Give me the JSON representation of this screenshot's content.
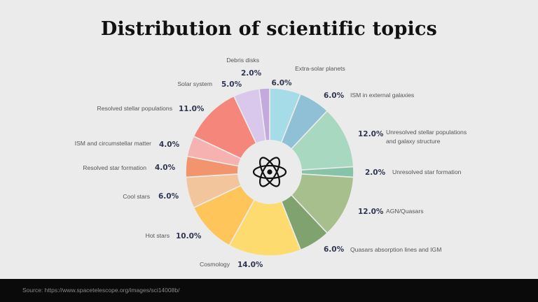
{
  "title": "Distribution of scientific topics",
  "source": "Source: https://www.spacetelescope.org/images/sci14008b/",
  "center_icon": "atom-icon",
  "chart_data": {
    "type": "pie",
    "variant": "donut",
    "title": "Distribution of scientific topics",
    "slices": [
      {
        "label": "Extra-solar planets",
        "value": 6.0,
        "value_text": "6.0%",
        "color": "#a6dbe8"
      },
      {
        "label": "ISM in external galaxies",
        "value": 6.0,
        "value_text": "6.0%",
        "color": "#8fc0d6"
      },
      {
        "label": "Unresolved stellar populations and galaxy structure",
        "value": 12.0,
        "value_text": "12.0%",
        "color": "#a8d8c0"
      },
      {
        "label": "Unresolved star formation",
        "value": 2.0,
        "value_text": "2.0%",
        "color": "#86c3a8"
      },
      {
        "label": "AGN/Quasars",
        "value": 12.0,
        "value_text": "12.0%",
        "color": "#a7bf8d"
      },
      {
        "label": "Quasars absorption lines and IGM",
        "value": 6.0,
        "value_text": "6.0%",
        "color": "#7fa26e"
      },
      {
        "label": "Cosmology",
        "value": 14.0,
        "value_text": "14.0%",
        "color": "#fedb6e"
      },
      {
        "label": "Hot stars",
        "value": 10.0,
        "value_text": "10.0%",
        "color": "#fec55b"
      },
      {
        "label": "Cool stars",
        "value": 6.0,
        "value_text": "6.0%",
        "color": "#f2c59d"
      },
      {
        "label": "Resolved star formation",
        "value": 4.0,
        "value_text": "4.0%",
        "color": "#f2956f"
      },
      {
        "label": "ISM and circumstellar matter",
        "value": 4.0,
        "value_text": "4.0%",
        "color": "#f6b1b1"
      },
      {
        "label": "Resolved stellar populations",
        "value": 11.0,
        "value_text": "11.0%",
        "color": "#f4867b"
      },
      {
        "label": "Solar system",
        "value": 5.0,
        "value_text": "5.0%",
        "color": "#d9c7ec"
      },
      {
        "label": "Debris disks",
        "value": 2.0,
        "value_text": "2.0%",
        "color": "#c3a9dc"
      }
    ]
  }
}
